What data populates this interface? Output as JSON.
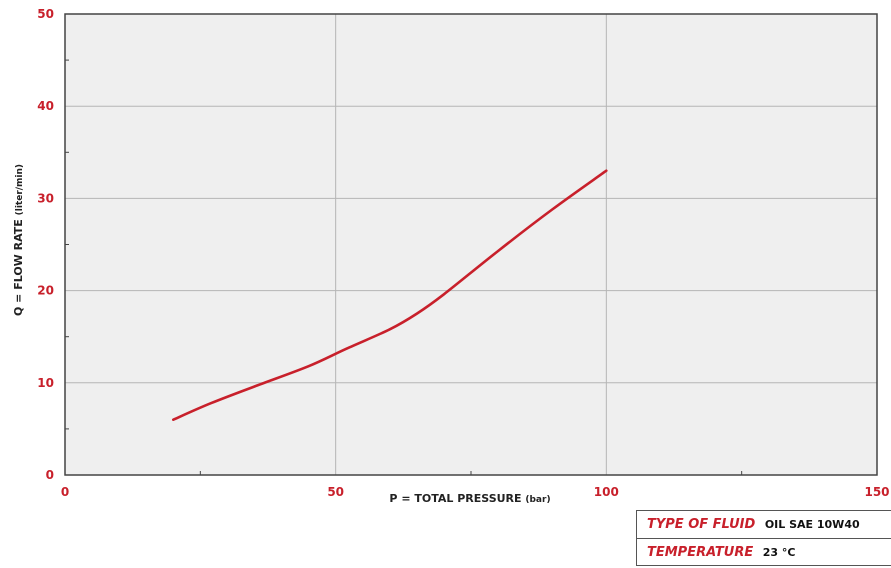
{
  "chart_data": {
    "type": "line",
    "title": "",
    "xlabel_main": "P = TOTAL PRESSURE",
    "xlabel_unit": "(bar)",
    "ylabel_main": "Q = FLOW RATE",
    "ylabel_unit": "(liter/min)",
    "xlim": [
      0,
      150
    ],
    "ylim": [
      0,
      50
    ],
    "xticks": [
      0,
      50,
      100,
      150
    ],
    "yticks": [
      0,
      10,
      20,
      30,
      40,
      50
    ],
    "xtick_labels": [
      "0",
      "50",
      "100",
      "150"
    ],
    "ytick_labels": [
      "0",
      "10",
      "20",
      "30",
      "40",
      "50"
    ],
    "grid": true,
    "series": [
      {
        "x": [
          20,
          27,
          35,
          45,
          52,
          60,
          65,
          70,
          80,
          90,
          100
        ],
        "y": [
          6.0,
          7.8,
          9.6,
          11.8,
          13.7,
          15.8,
          17.5,
          19.6,
          24.3,
          28.8,
          33.0
        ]
      }
    ],
    "colors": {
      "line": "#c8202b",
      "tick_label": "#c8202b",
      "plot_bg": "#efefef",
      "grid": "#b5b5b5",
      "frame": "#444444"
    }
  },
  "info": {
    "fluid_label": "TYPE OF FLUID",
    "fluid_value": "OIL SAE 10W40",
    "temp_label": "TEMPERATURE",
    "temp_value": "23 °C"
  }
}
